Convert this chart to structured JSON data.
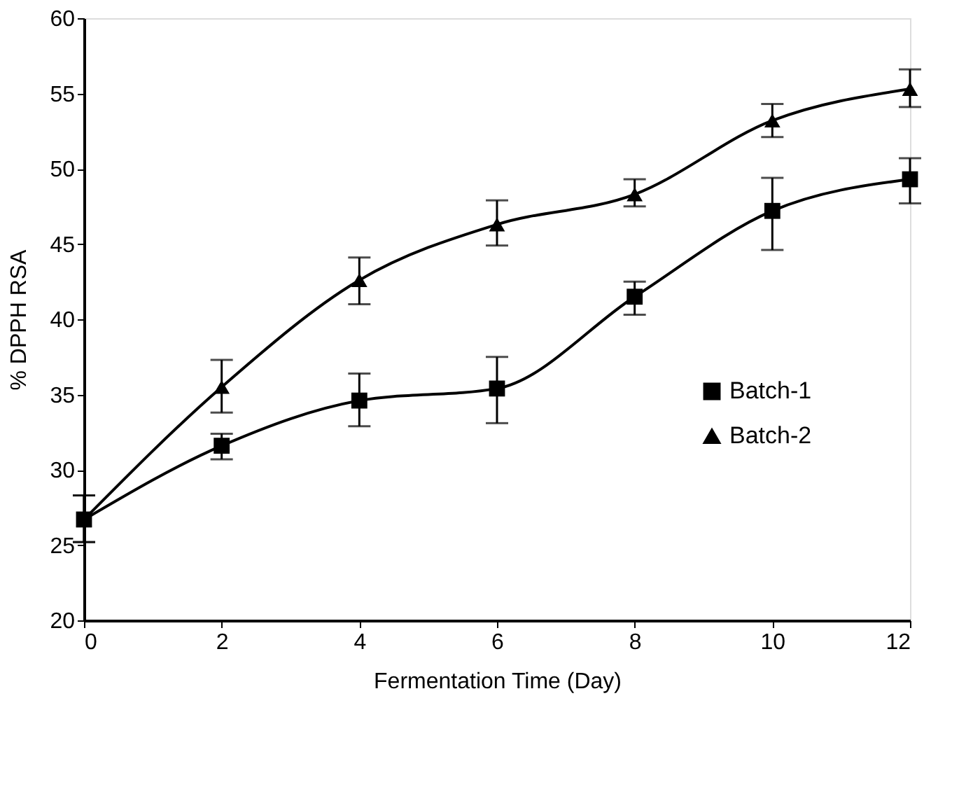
{
  "chart_data": {
    "type": "line",
    "xlabel": "Fermentation Time (Day)",
    "ylabel": "% DPPH RSA",
    "x": [
      0,
      2,
      4,
      6,
      8,
      10,
      12
    ],
    "series": [
      {
        "name": "Batch-1",
        "color": "#000000",
        "marker": "square",
        "values": [
          26.7,
          31.6,
          34.6,
          35.4,
          41.5,
          47.2,
          49.3
        ],
        "errors": [
          [
            25.2,
            28.3
          ],
          [
            30.7,
            32.4
          ],
          [
            32.9,
            36.4
          ],
          [
            33.1,
            37.5
          ],
          [
            40.3,
            42.5
          ],
          [
            44.6,
            49.4
          ],
          [
            47.7,
            50.7
          ]
        ]
      },
      {
        "name": "Batch-2",
        "color": "#000000",
        "marker": "triangle",
        "values": [
          26.7,
          35.5,
          42.6,
          46.3,
          48.3,
          53.2,
          55.3
        ],
        "errors": [
          [
            25.2,
            28.3
          ],
          [
            33.8,
            37.3
          ],
          [
            41.0,
            44.1
          ],
          [
            44.9,
            47.9
          ],
          [
            47.5,
            49.3
          ],
          [
            52.1,
            54.3
          ],
          [
            54.1,
            56.6
          ]
        ]
      }
    ],
    "xlim": [
      0,
      12
    ],
    "xticks": [
      0,
      2,
      4,
      6,
      8,
      10,
      12
    ],
    "ylim": [
      20,
      60
    ],
    "yticks": [
      20,
      25,
      30,
      35,
      40,
      45,
      50,
      55,
      60
    ],
    "grid": false,
    "legend": "right",
    "line_style": "solid"
  }
}
